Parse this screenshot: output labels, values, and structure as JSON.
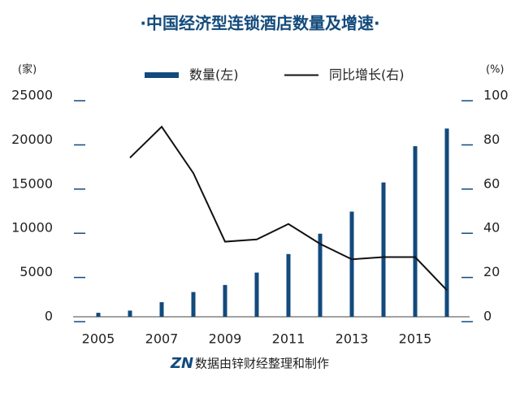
{
  "chart_data": {
    "type": "bar-line",
    "title": "·中国经济型连锁酒店数量及增速·",
    "y_unit": "(家)",
    "y2_unit": "(%)",
    "categories": [
      "2005",
      null,
      "2007",
      null,
      "2009",
      null,
      "2011",
      null,
      "2013",
      null,
      "2015",
      null
    ],
    "series": [
      {
        "name": "数量(左)",
        "type": "bar",
        "color": "#124a7c",
        "values": [
          450,
          700,
          1650,
          2800,
          3600,
          5000,
          7100,
          9400,
          11900,
          15200,
          19300,
          21300
        ]
      },
      {
        "name": "同比增长(右)",
        "type": "line",
        "axis": "y2",
        "color": "#111111",
        "values": [
          null,
          72,
          86,
          65,
          34,
          35,
          42,
          33,
          26,
          27,
          27,
          12
        ]
      }
    ],
    "ylim": [
      0,
      25000
    ],
    "yticks": [
      0,
      5000,
      10000,
      15000,
      20000,
      25000
    ],
    "y2lim": [
      0,
      100
    ],
    "y2ticks": [
      0,
      20,
      40,
      60,
      80,
      100
    ],
    "source_logo": "ZN",
    "source": "数据由锌财经整理和制作"
  }
}
